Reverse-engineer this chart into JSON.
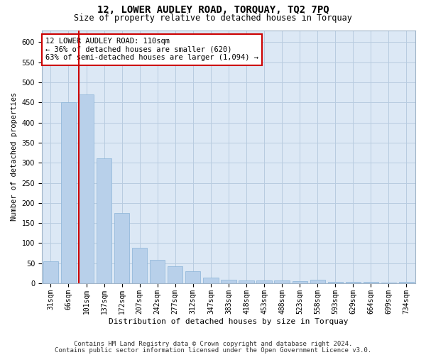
{
  "title": "12, LOWER AUDLEY ROAD, TORQUAY, TQ2 7PQ",
  "subtitle": "Size of property relative to detached houses in Torquay",
  "xlabel": "Distribution of detached houses by size in Torquay",
  "ylabel": "Number of detached properties",
  "categories": [
    "31sqm",
    "66sqm",
    "101sqm",
    "137sqm",
    "172sqm",
    "207sqm",
    "242sqm",
    "277sqm",
    "312sqm",
    "347sqm",
    "383sqm",
    "418sqm",
    "453sqm",
    "488sqm",
    "523sqm",
    "558sqm",
    "593sqm",
    "629sqm",
    "664sqm",
    "699sqm",
    "734sqm"
  ],
  "values": [
    54,
    450,
    470,
    311,
    175,
    88,
    58,
    43,
    30,
    15,
    9,
    8,
    8,
    7,
    6,
    9,
    3,
    3,
    3,
    1,
    4
  ],
  "bar_color": "#b8d0ea",
  "bar_edge_color": "#8ab4d8",
  "highlight_bar_index": 2,
  "highlight_line_color": "#cc0000",
  "annotation_text": "12 LOWER AUDLEY ROAD: 110sqm\n← 36% of detached houses are smaller (620)\n63% of semi-detached houses are larger (1,094) →",
  "annotation_box_color": "#ffffff",
  "annotation_box_edge_color": "#cc0000",
  "ylim": [
    0,
    630
  ],
  "yticks": [
    0,
    50,
    100,
    150,
    200,
    250,
    300,
    350,
    400,
    450,
    500,
    550,
    600
  ],
  "footer_line1": "Contains HM Land Registry data © Crown copyright and database right 2024.",
  "footer_line2": "Contains public sector information licensed under the Open Government Licence v3.0.",
  "background_color": "#ffffff",
  "plot_bg_color": "#dce8f5",
  "grid_color": "#b8cce0",
  "title_fontsize": 10,
  "subtitle_fontsize": 8.5,
  "ylabel_fontsize": 7.5,
  "xlabel_fontsize": 8,
  "tick_fontsize": 7,
  "annotation_fontsize": 7.5,
  "footer_fontsize": 6.5
}
